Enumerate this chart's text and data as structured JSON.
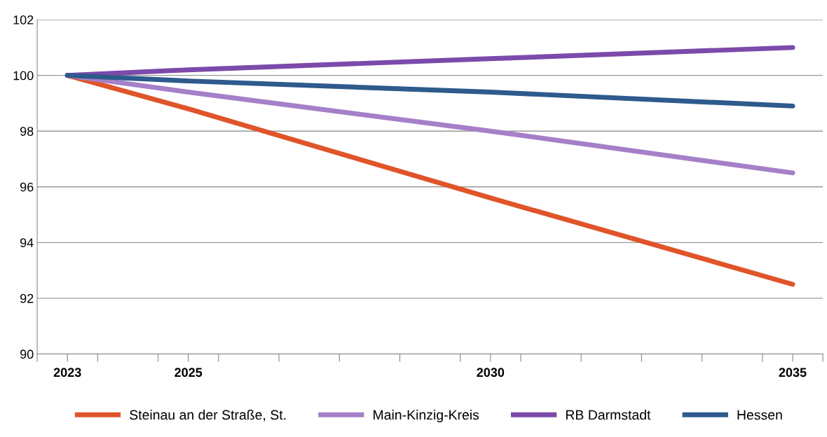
{
  "chart_data": {
    "type": "line",
    "x": [
      2023,
      2025,
      2030,
      2035
    ],
    "series": [
      {
        "name": "Steinau an der Straße, St.",
        "color": "#e0542a",
        "values": [
          100,
          98.8,
          95.6,
          92.5
        ]
      },
      {
        "name": "Main-Kinzig-Kreis",
        "color": "#a580c8",
        "values": [
          100,
          99.4,
          98.0,
          96.5
        ]
      },
      {
        "name": "RB Darmstadt",
        "color": "#7b4aab",
        "values": [
          100,
          100.2,
          100.6,
          101.0
        ]
      },
      {
        "name": "Hessen",
        "color": "#2e5a8c",
        "values": [
          100,
          99.8,
          99.4,
          98.9
        ]
      }
    ],
    "xlim": [
      2022.5,
      2035.5
    ],
    "xticks": [
      {
        "value": 2022.5,
        "label": null
      },
      2023,
      {
        "value": 2023.5,
        "label": null
      },
      {
        "value": 2024.5,
        "label": null
      },
      2025,
      {
        "value": 2025.5,
        "label": null
      },
      {
        "value": 2026.5,
        "label": null
      },
      {
        "value": 2027.5,
        "label": null
      },
      {
        "value": 2028.5,
        "label": null
      },
      {
        "value": 2029.5,
        "label": null
      },
      2030,
      {
        "value": 2030.5,
        "label": null
      },
      {
        "value": 2031.5,
        "label": null
      },
      {
        "value": 2032.5,
        "label": null
      },
      {
        "value": 2033.5,
        "label": null
      },
      {
        "value": 2034.5,
        "label": null
      },
      2035,
      {
        "value": 2035.5,
        "label": null
      }
    ],
    "ylim": [
      90,
      102
    ],
    "yticks": [
      90,
      92,
      94,
      96,
      98,
      100,
      102
    ],
    "grid": "y",
    "legend": "bottom",
    "marker": "none",
    "line_style": "solid"
  }
}
